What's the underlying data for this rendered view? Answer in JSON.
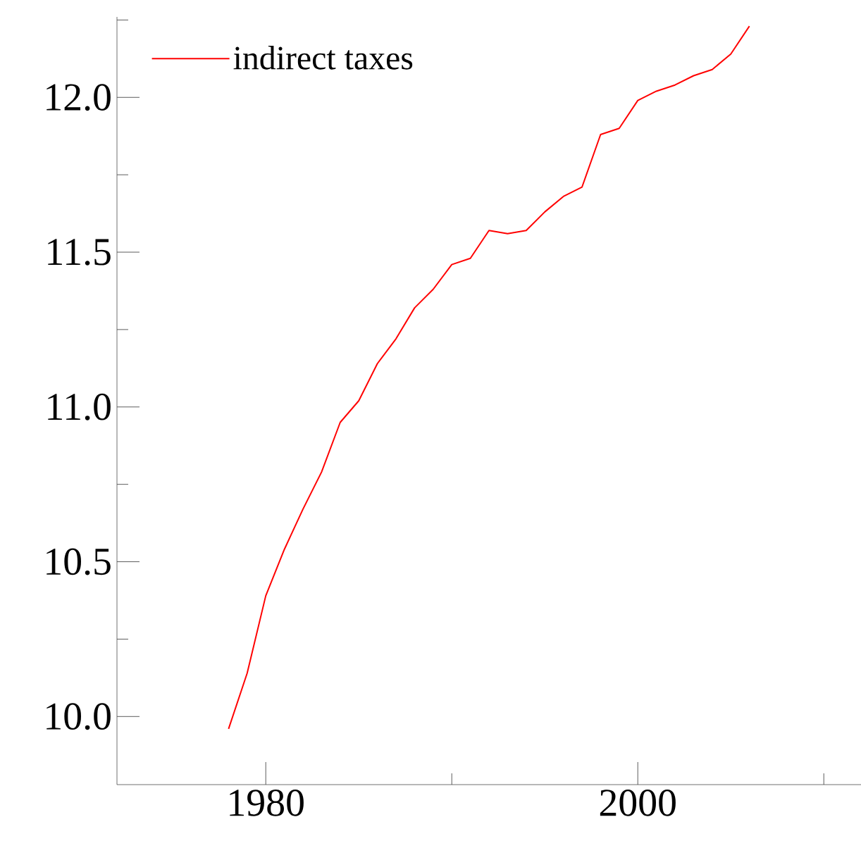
{
  "chart_data": {
    "type": "line",
    "x": [
      1978,
      1979,
      1980,
      1981,
      1982,
      1983,
      1984,
      1985,
      1986,
      1987,
      1988,
      1989,
      1990,
      1991,
      1992,
      1993,
      1994,
      1995,
      1996,
      1997,
      1998,
      1999,
      2000,
      2001,
      2002,
      2003,
      2004,
      2005,
      2006
    ],
    "series": [
      {
        "name": "indirect taxes",
        "color": "#ff0000",
        "values": [
          9.96,
          10.14,
          10.39,
          10.54,
          10.67,
          10.79,
          10.95,
          11.02,
          11.14,
          11.22,
          11.32,
          11.38,
          11.46,
          11.48,
          11.57,
          11.56,
          11.57,
          11.63,
          11.68,
          11.71,
          11.88,
          11.9,
          11.99,
          12.02,
          12.04,
          12.07,
          12.09,
          12.14,
          12.23
        ]
      }
    ],
    "xlim": [
      1972,
      2012
    ],
    "ylim": [
      9.78,
      12.26
    ],
    "xticks": [
      1980,
      {
        "value": 1990,
        "label": null
      },
      2000,
      {
        "value": 2010,
        "label": null
      }
    ],
    "yticks": [
      {
        "value": 10,
        "label": "10.0"
      },
      {
        "value": 10.25,
        "label": null
      },
      {
        "value": 10.5,
        "label": "10.5"
      },
      {
        "value": 10.75,
        "label": null
      },
      {
        "value": 11,
        "label": "11.0"
      },
      {
        "value": 11.25,
        "label": null
      },
      {
        "value": 11.5,
        "label": "11.5"
      },
      {
        "value": 11.75,
        "label": null
      },
      {
        "value": 12,
        "label": "12.0"
      },
      {
        "value": 12.25,
        "label": null
      }
    ],
    "legend": "top left",
    "grid": false,
    "line_style": "solid"
  }
}
